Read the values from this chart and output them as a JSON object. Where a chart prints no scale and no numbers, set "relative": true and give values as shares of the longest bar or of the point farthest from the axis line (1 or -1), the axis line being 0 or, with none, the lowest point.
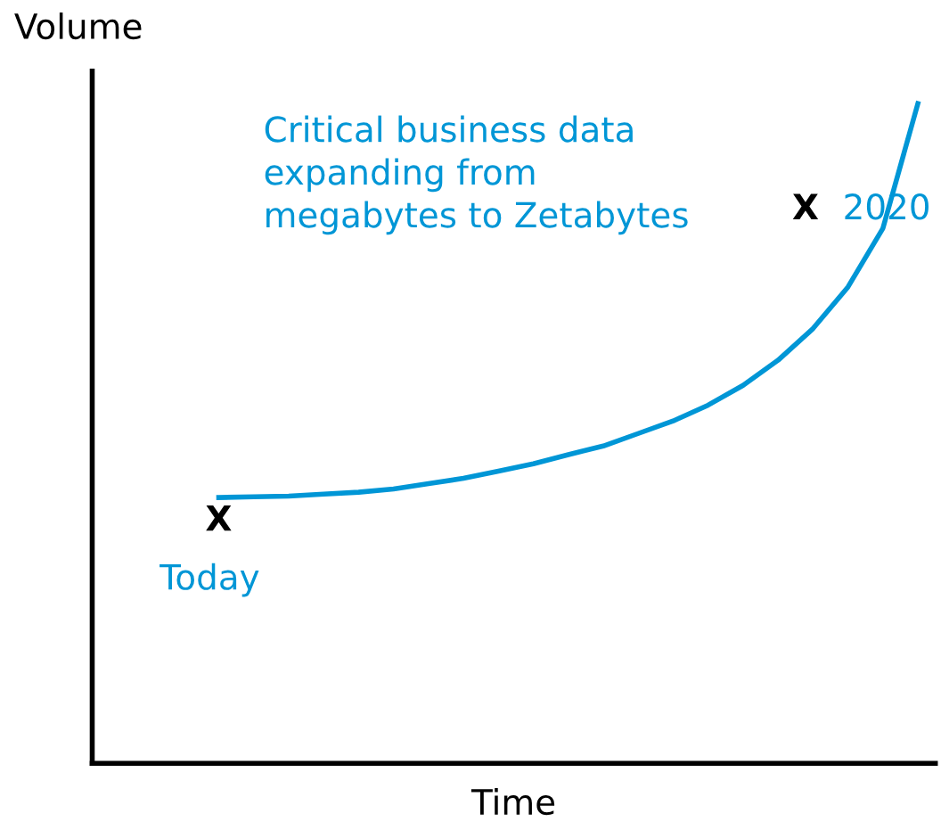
{
  "chart_data": {
    "type": "line",
    "relative": true,
    "xlabel": "Time",
    "ylabel": "Volume",
    "categories": [
      null,
      null,
      null,
      null,
      null,
      null,
      null,
      null,
      null,
      null,
      null,
      null,
      null,
      null,
      null,
      null,
      null,
      null,
      null,
      null,
      null
    ],
    "series": [
      {
        "color": "#0096d6",
        "values": [
          0.403,
          0.404,
          0.405,
          0.408,
          0.411,
          0.416,
          0.424,
          0.432,
          0.443,
          0.454,
          0.468,
          0.481,
          0.5,
          0.519,
          0.543,
          0.573,
          0.611,
          0.659,
          0.722,
          0.811,
          1
        ]
      }
    ],
    "annotations": [
      "Critical business data\nexpanding from\nmegabytes to Zetabytes",
      "X",
      "Today",
      "X",
      "2020"
    ],
    "grid": false,
    "legend": false,
    "marker": "none",
    "line_style": "solid",
    "tick_labels": false
  }
}
